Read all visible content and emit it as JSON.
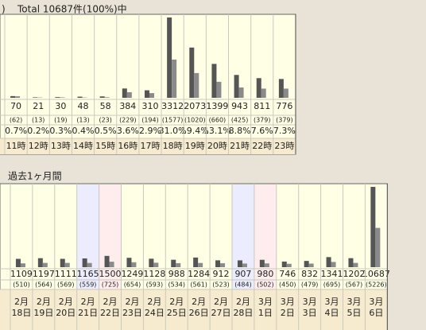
{
  "chart_data": [
    {
      "type": "bar",
      "title_fragment": ")",
      "title": "Total 10687件(100%)中",
      "categories": [
        "11時",
        "12時",
        "13時",
        "14時",
        "15時",
        "16時",
        "17時",
        "18時",
        "19時",
        "20時",
        "21時",
        "22時",
        "23時"
      ],
      "series": [
        {
          "color": "#555555",
          "values": [
            70,
            21,
            30,
            48,
            58,
            384,
            310,
            3312,
            2073,
            1399,
            943,
            811,
            776
          ]
        },
        {
          "color": "#8a8a8a",
          "values": [
            62,
            13,
            19,
            13,
            23,
            229,
            194,
            1577,
            1020,
            660,
            425,
            379,
            379
          ],
          "value_labels": [
            "(62)",
            "(13)",
            "(19)",
            "(13)",
            "(23)",
            "(229)",
            "(194)",
            "(1577)",
            "(1020)",
            "(660)",
            "(425)",
            "(379)",
            "(379)"
          ]
        }
      ],
      "percent_labels": [
        "0.7%",
        "0.2%",
        "0.3%",
        "0.4%",
        "0.5%",
        "3.6%",
        "2.9%",
        "31.0%",
        "19.4%",
        "13.1%",
        "8.8%",
        "7.6%",
        "7.3%"
      ],
      "ylim": [
        0,
        3312
      ]
    },
    {
      "type": "bar",
      "title": "過去1ヶ月間",
      "category_lines": [
        [
          "2月",
          "18日"
        ],
        [
          "2月",
          "19日"
        ],
        [
          "2月",
          "20日"
        ],
        [
          "2月",
          "21日"
        ],
        [
          "2月",
          "22日"
        ],
        [
          "2月",
          "23日"
        ],
        [
          "2月",
          "24日"
        ],
        [
          "2月",
          "25日"
        ],
        [
          "2月",
          "26日"
        ],
        [
          "2月",
          "27日"
        ],
        [
          "2月",
          "28日"
        ],
        [
          "3月",
          "1日"
        ],
        [
          "3月",
          "2日"
        ],
        [
          "3月",
          "3日"
        ],
        [
          "3月",
          "4日"
        ],
        [
          "3月",
          "5日"
        ],
        [
          "3月",
          "6日"
        ]
      ],
      "series": [
        {
          "color": "#555555",
          "values": [
            1109,
            1197,
            1111,
            1165,
            1500,
            1249,
            1128,
            988,
            1284,
            912,
            907,
            980,
            746,
            832,
            1341,
            1202,
            10687
          ]
        },
        {
          "color": "#8a8a8a",
          "values": [
            510,
            564,
            569,
            559,
            725,
            654,
            593,
            534,
            561,
            523,
            484,
            502,
            450,
            479,
            695,
            567,
            5226
          ],
          "value_labels": [
            "(510)",
            "(564)",
            "(569)",
            "(559)",
            "(725)",
            "(654)",
            "(593)",
            "(534)",
            "(561)",
            "(523)",
            "(484)",
            "(502)",
            "(450)",
            "(479)",
            "(695)",
            "(567)",
            "(5226)"
          ]
        }
      ],
      "column_backgrounds": [
        "#ffffe6",
        "#ffffe6",
        "#ffffe6",
        "#ececff",
        "#ffecec",
        "#ffffe6",
        "#ffffe6",
        "#ffffe6",
        "#ffffe6",
        "#ffffe6",
        "#ececff",
        "#ffecec",
        "#ffffe6",
        "#ffffe6",
        "#ffffe6",
        "#ffffe6",
        "#ffffe6"
      ],
      "ylim": [
        0,
        10687
      ]
    }
  ]
}
